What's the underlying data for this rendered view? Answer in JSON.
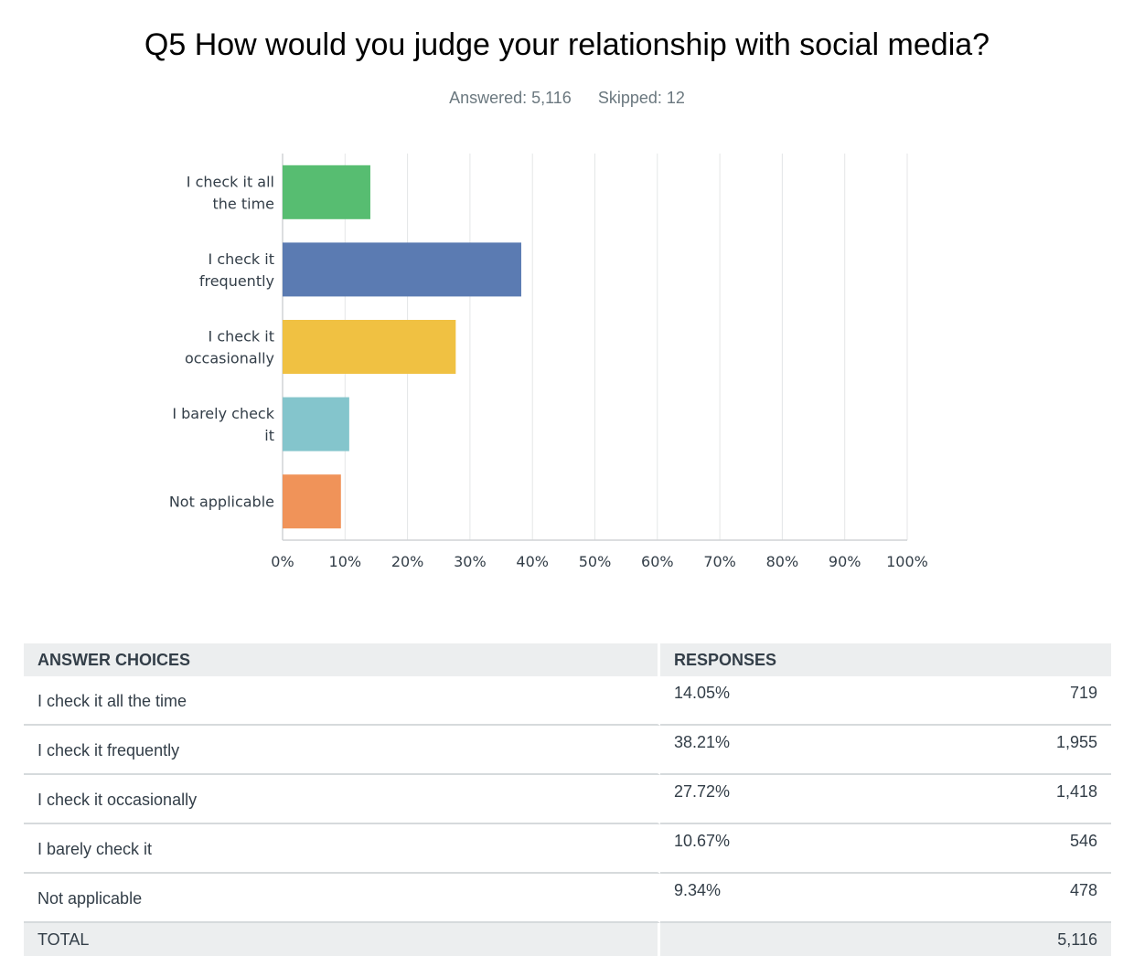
{
  "title": "Q5 How would you judge your relationship with social media?",
  "answered": "Answered: 5,116",
  "skipped": "Skipped: 12",
  "chart_data": {
    "type": "bar",
    "orientation": "horizontal",
    "categories": [
      [
        "I check it all",
        "the time"
      ],
      [
        "I check it",
        "frequently"
      ],
      [
        "I check it",
        "occasionally"
      ],
      [
        "I barely check",
        "it"
      ],
      [
        "Not applicable"
      ]
    ],
    "values": [
      14.05,
      38.21,
      27.72,
      10.67,
      9.34
    ],
    "colors": [
      "#57bd71",
      "#5b7bb2",
      "#f0c142",
      "#84c5cc",
      "#f09359"
    ],
    "xlim": [
      0,
      100
    ],
    "xticks": [
      "0%",
      "10%",
      "20%",
      "30%",
      "40%",
      "50%",
      "60%",
      "70%",
      "80%",
      "90%",
      "100%"
    ],
    "grid": true
  },
  "table": {
    "header_choice": "ANSWER CHOICES",
    "header_responses": "RESPONSES",
    "rows": [
      {
        "choice": "I check it all the time",
        "percent": "14.05%",
        "count": "719"
      },
      {
        "choice": "I check it frequently",
        "percent": "38.21%",
        "count": "1,955"
      },
      {
        "choice": "I check it occasionally",
        "percent": "27.72%",
        "count": "1,418"
      },
      {
        "choice": "I barely check it",
        "percent": "10.67%",
        "count": "546"
      },
      {
        "choice": "Not applicable",
        "percent": "9.34%",
        "count": "478"
      }
    ],
    "total_label": "TOTAL",
    "total_count": "5,116"
  }
}
